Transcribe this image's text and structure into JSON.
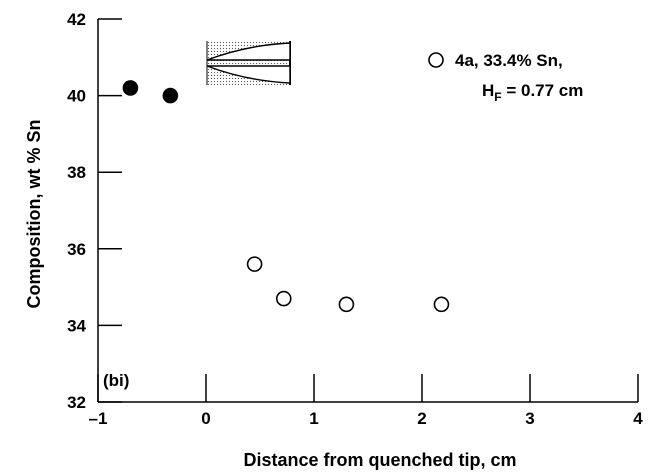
{
  "chart_data": {
    "type": "scatter",
    "title": "",
    "xlabel": "Distance from quenched tip, cm",
    "ylabel": "Composition, wt % Sn",
    "xlim": [
      -1,
      4
    ],
    "ylim": [
      32,
      42
    ],
    "x_ticks": [
      -1,
      0,
      1,
      2,
      3,
      4
    ],
    "x_tick_labels": [
      "–1",
      "0",
      "1",
      "2",
      "3",
      "4"
    ],
    "y_ticks": [
      32,
      34,
      36,
      38,
      40,
      42
    ],
    "y_tick_labels": [
      "32",
      "34",
      "36",
      "38",
      "40",
      "42"
    ],
    "grid": false,
    "legend_position": "top-right",
    "panel_label": "(bi)",
    "series": [
      {
        "name": "4a, 33.4% Sn,",
        "name_line2_prefix": "H",
        "name_line2_sub": "F",
        "name_line2_suffix": " = 0.77 cm",
        "marker": "open-circle",
        "x": [
          0.45,
          0.72,
          1.3,
          2.18
        ],
        "y": [
          35.6,
          34.7,
          34.55,
          34.55
        ]
      },
      {
        "marker": "filled-circle",
        "x": [
          -0.7,
          -0.33
        ],
        "y": [
          40.2,
          40.0
        ]
      }
    ]
  }
}
